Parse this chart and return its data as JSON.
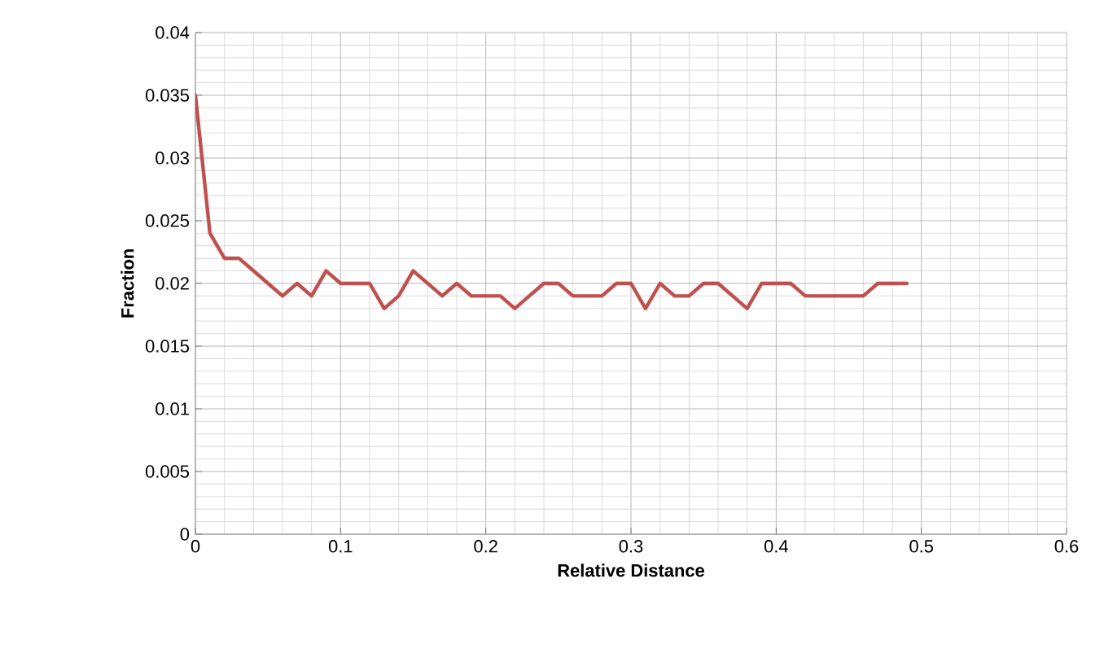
{
  "chart_data": {
    "type": "line",
    "xlabel": "Relative Distance",
    "ylabel": "Fraction",
    "x": [
      0,
      0.01,
      0.02,
      0.03,
      0.04,
      0.05,
      0.06,
      0.07,
      0.08,
      0.09,
      0.1,
      0.11,
      0.12,
      0.13,
      0.14,
      0.15,
      0.16,
      0.17,
      0.18,
      0.19,
      0.2,
      0.21,
      0.22,
      0.23,
      0.24,
      0.25,
      0.26,
      0.27,
      0.28,
      0.29,
      0.3,
      0.31,
      0.32,
      0.33,
      0.34,
      0.35,
      0.36,
      0.37,
      0.38,
      0.39,
      0.4,
      0.41,
      0.42,
      0.43,
      0.44,
      0.45,
      0.46,
      0.47,
      0.48,
      0.49
    ],
    "series": [
      {
        "color": "#c0504d",
        "values": [
          0.035,
          0.024,
          0.022,
          0.022,
          0.021,
          0.02,
          0.019,
          0.02,
          0.019,
          0.021,
          0.02,
          0.02,
          0.02,
          0.018,
          0.019,
          0.021,
          0.02,
          0.019,
          0.02,
          0.019,
          0.019,
          0.019,
          0.018,
          0.019,
          0.02,
          0.02,
          0.019,
          0.019,
          0.019,
          0.02,
          0.02,
          0.018,
          0.02,
          0.019,
          0.019,
          0.02,
          0.02,
          0.019,
          0.018,
          0.02,
          0.02,
          0.02,
          0.019,
          0.019,
          0.019,
          0.019,
          0.019,
          0.02,
          0.02,
          0.02
        ]
      }
    ],
    "xlim": [
      0,
      0.6
    ],
    "xticks": [
      0,
      0.1,
      0.2,
      0.3,
      0.4,
      0.5,
      0.6
    ],
    "ylim": [
      0,
      0.04
    ],
    "yticks": [
      0,
      0.005,
      0.01,
      0.015,
      0.02,
      0.025,
      0.03,
      0.035,
      0.04
    ],
    "grid": true,
    "marker": "none",
    "line_style": "solid"
  }
}
